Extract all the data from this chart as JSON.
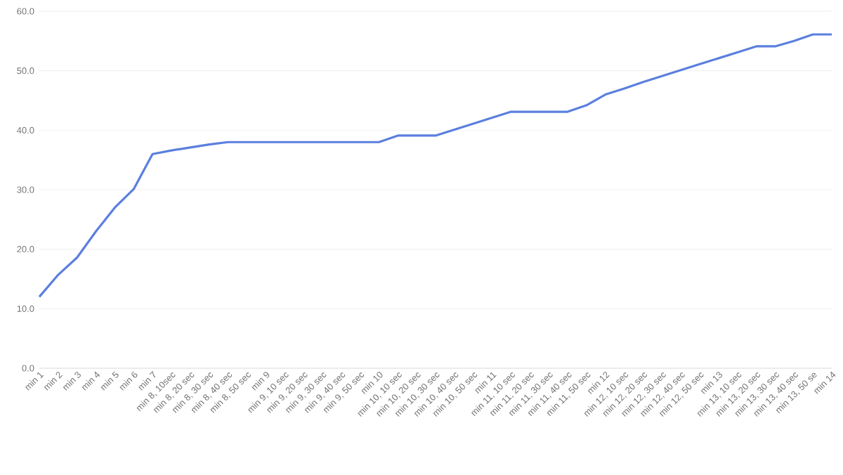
{
  "chart_data": {
    "type": "line",
    "categories": [
      "min 1",
      "min 2",
      "min 3",
      "min 4",
      "min 5",
      "min 6",
      "min 7",
      "min 8, 10sec",
      "min 8, 20 sec",
      "min 8, 30 sec",
      "min 8, 40 sec",
      "min 8, 50 sec",
      "min 9",
      "min 9, 10 sec",
      "min 9, 20 sec",
      "min 9, 30 sec",
      "min 9, 40 sec",
      "min 9, 50 sec",
      "min 10",
      "min 10, 10 sec",
      "min 10, 20 sec",
      "min 10, 30 sec",
      "min 10, 40 sec",
      "min 10, 50 sec",
      "min 11",
      "min 11, 10 sec",
      "min 11, 20 sec",
      "min 11, 30 sec",
      "min 11, 40 sec",
      "min 11, 50 sec",
      "min 12",
      "min 12, 10 sec",
      "min 12, 20 sec",
      "min 12, 30 sec",
      "min 12, 40 sec",
      "min 12, 50 sec",
      "min 13",
      "min 13, 10 sec",
      "min 13, 20 sec",
      "min 13, 30 sec",
      "min 13, 40 sec",
      "min 13, 50 se",
      "min 14"
    ],
    "series": [
      {
        "color": "#5b7fde",
        "values": [
          12.0,
          15.7,
          18.6,
          23.0,
          27.0,
          30.1,
          36.0,
          36.6,
          37.1,
          37.6,
          38.0,
          38.0,
          38.0,
          38.0,
          38.0,
          38.0,
          38.0,
          38.0,
          38.0,
          39.1,
          39.1,
          39.1,
          40.1,
          41.1,
          42.1,
          43.1,
          43.1,
          43.1,
          43.1,
          44.2,
          46.0,
          47.0,
          48.1,
          49.1,
          50.1,
          51.1,
          52.1,
          53.1,
          54.1,
          54.1,
          55.0,
          56.1,
          56.1
        ]
      }
    ],
    "ylim": [
      0,
      60
    ],
    "yticks": [
      {
        "value": 0,
        "label": "0.0"
      },
      {
        "value": 10,
        "label": "10.0"
      },
      {
        "value": 20,
        "label": "20.0"
      },
      {
        "value": 30,
        "label": "30.0"
      },
      {
        "value": 40,
        "label": "40.0"
      },
      {
        "value": 50,
        "label": "50.0"
      },
      {
        "value": 60,
        "label": "60.0"
      }
    ],
    "grid": "y",
    "legend": false,
    "marker": "none",
    "line_style": "solid"
  }
}
